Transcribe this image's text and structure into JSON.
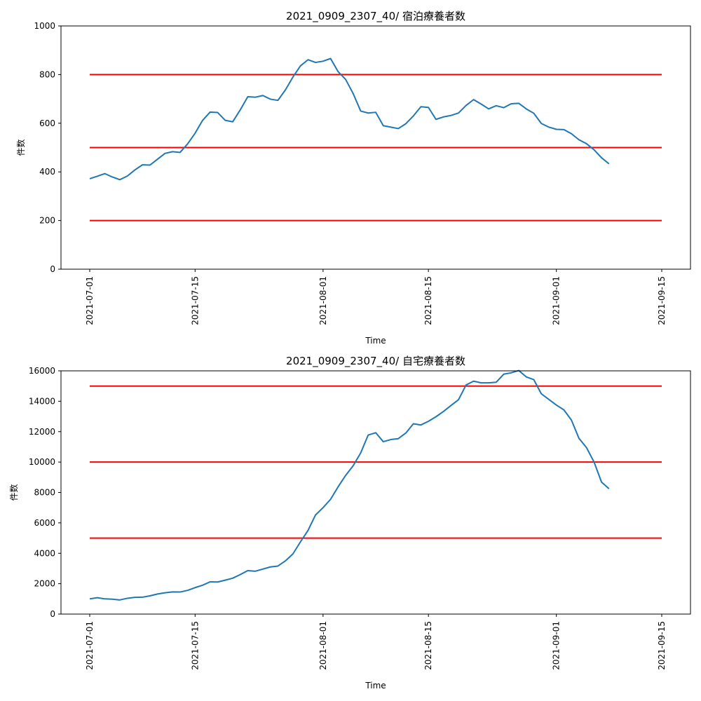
{
  "chart_data": [
    {
      "type": "line",
      "title": "2021_0909_2307_40/ 宿泊療養者数",
      "xlabel": "Time",
      "ylabel": "件数",
      "x_type": "date",
      "xlim": [
        "2021-07-01",
        "2021-09-15"
      ],
      "ylim": [
        0,
        1000
      ],
      "x_ticks": [
        "2021-07-01",
        "2021-07-15",
        "2021-08-01",
        "2021-08-15",
        "2021-09-01",
        "2021-09-15"
      ],
      "y_ticks": [
        0,
        200,
        400,
        600,
        800,
        1000
      ],
      "grid": false,
      "series_color": "#1f77b4",
      "reference_line_color": "#ff0000",
      "reference_lines": [
        200,
        500,
        800
      ],
      "x": [
        "2021-07-01",
        "2021-07-02",
        "2021-07-03",
        "2021-07-04",
        "2021-07-05",
        "2021-07-06",
        "2021-07-07",
        "2021-07-08",
        "2021-07-09",
        "2021-07-10",
        "2021-07-11",
        "2021-07-12",
        "2021-07-13",
        "2021-07-14",
        "2021-07-15",
        "2021-07-16",
        "2021-07-17",
        "2021-07-18",
        "2021-07-19",
        "2021-07-20",
        "2021-07-21",
        "2021-07-22",
        "2021-07-23",
        "2021-07-24",
        "2021-07-25",
        "2021-07-26",
        "2021-07-27",
        "2021-07-28",
        "2021-07-29",
        "2021-07-30",
        "2021-07-31",
        "2021-08-01",
        "2021-08-02",
        "2021-08-03",
        "2021-08-04",
        "2021-08-05",
        "2021-08-06",
        "2021-08-07",
        "2021-08-08",
        "2021-08-09",
        "2021-08-10",
        "2021-08-11",
        "2021-08-12",
        "2021-08-13",
        "2021-08-14",
        "2021-08-15",
        "2021-08-16",
        "2021-08-17",
        "2021-08-18",
        "2021-08-19",
        "2021-08-20",
        "2021-08-21",
        "2021-08-22",
        "2021-08-23",
        "2021-08-24",
        "2021-08-25",
        "2021-08-26",
        "2021-08-27",
        "2021-08-28",
        "2021-08-29",
        "2021-08-30",
        "2021-08-31",
        "2021-09-01",
        "2021-09-02",
        "2021-09-03",
        "2021-09-04",
        "2021-09-05",
        "2021-09-06",
        "2021-09-07",
        "2021-09-08"
      ],
      "values": [
        372,
        382,
        393,
        379,
        368,
        383,
        408,
        429,
        428,
        452,
        476,
        483,
        480,
        515,
        559,
        612,
        646,
        644,
        612,
        606,
        655,
        709,
        707,
        714,
        699,
        694,
        737,
        790,
        836,
        861,
        850,
        855,
        866,
        812,
        780,
        722,
        650,
        642,
        645,
        590,
        584,
        578,
        598,
        630,
        668,
        665,
        616,
        626,
        632,
        642,
        673,
        697,
        679,
        659,
        672,
        664,
        680,
        682,
        659,
        641,
        599,
        584,
        575,
        574,
        557,
        532,
        516,
        491,
        458,
        433
      ]
    },
    {
      "type": "line",
      "title": "2021_0909_2307_40/ 自宅療養者数",
      "xlabel": "Time",
      "ylabel": "件数",
      "x_type": "date",
      "xlim": [
        "2021-07-01",
        "2021-09-15"
      ],
      "ylim": [
        0,
        16000
      ],
      "x_ticks": [
        "2021-07-01",
        "2021-07-15",
        "2021-08-01",
        "2021-08-15",
        "2021-09-01",
        "2021-09-15"
      ],
      "y_ticks": [
        0,
        2000,
        4000,
        6000,
        8000,
        10000,
        12000,
        14000,
        16000
      ],
      "grid": false,
      "series_color": "#1f77b4",
      "reference_line_color": "#ff0000",
      "reference_lines": [
        5000,
        10000,
        15000
      ],
      "x": [
        "2021-07-01",
        "2021-07-02",
        "2021-07-03",
        "2021-07-04",
        "2021-07-05",
        "2021-07-06",
        "2021-07-07",
        "2021-07-08",
        "2021-07-09",
        "2021-07-10",
        "2021-07-11",
        "2021-07-12",
        "2021-07-13",
        "2021-07-14",
        "2021-07-15",
        "2021-07-16",
        "2021-07-17",
        "2021-07-18",
        "2021-07-19",
        "2021-07-20",
        "2021-07-21",
        "2021-07-22",
        "2021-07-23",
        "2021-07-24",
        "2021-07-25",
        "2021-07-26",
        "2021-07-27",
        "2021-07-28",
        "2021-07-29",
        "2021-07-30",
        "2021-07-31",
        "2021-08-01",
        "2021-08-02",
        "2021-08-03",
        "2021-08-04",
        "2021-08-05",
        "2021-08-06",
        "2021-08-07",
        "2021-08-08",
        "2021-08-09",
        "2021-08-10",
        "2021-08-11",
        "2021-08-12",
        "2021-08-13",
        "2021-08-14",
        "2021-08-15",
        "2021-08-16",
        "2021-08-17",
        "2021-08-18",
        "2021-08-19",
        "2021-08-20",
        "2021-08-21",
        "2021-08-22",
        "2021-08-23",
        "2021-08-24",
        "2021-08-25",
        "2021-08-26",
        "2021-08-27",
        "2021-08-28",
        "2021-08-29",
        "2021-08-30",
        "2021-08-31",
        "2021-09-01",
        "2021-09-02",
        "2021-09-03",
        "2021-09-04",
        "2021-09-05",
        "2021-09-06",
        "2021-09-07",
        "2021-09-08"
      ],
      "values": [
        1000,
        1080,
        1000,
        980,
        930,
        1040,
        1100,
        1110,
        1200,
        1320,
        1400,
        1460,
        1450,
        1560,
        1740,
        1900,
        2120,
        2110,
        2230,
        2360,
        2600,
        2860,
        2820,
        2960,
        3100,
        3160,
        3500,
        3960,
        4750,
        5500,
        6520,
        7000,
        7550,
        8370,
        9120,
        9760,
        10600,
        11780,
        11930,
        11340,
        11480,
        11540,
        11910,
        12520,
        12440,
        12680,
        12980,
        13330,
        13720,
        14100,
        15070,
        15320,
        15210,
        15210,
        15250,
        15780,
        15870,
        16020,
        15600,
        15420,
        14490,
        14120,
        13750,
        13430,
        12760,
        11560,
        10950,
        10010,
        8680,
        8240
      ]
    }
  ]
}
